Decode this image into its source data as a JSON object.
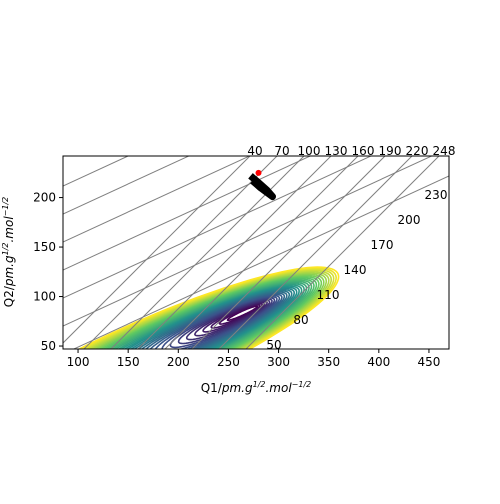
{
  "chart_data": {
    "type": "contour",
    "title": "",
    "xlabel": {
      "base": "Q1/",
      "unit": "pm.g",
      "exp1": "1/2",
      "sep": ".mol",
      "exp2": "−1/2"
    },
    "ylabel": {
      "base": "Q2/",
      "unit": "pm.g",
      "exp1": "1/2",
      "sep": ".mol",
      "exp2": "−1/2"
    },
    "xlim": [
      85,
      470
    ],
    "ylim": [
      47,
      242
    ],
    "x_ticks": [
      100,
      150,
      200,
      250,
      300,
      350,
      400,
      450
    ],
    "y_ticks": [
      50,
      100,
      150,
      200
    ],
    "grid_left_labels": [
      "40",
      "70",
      "100",
      "130",
      "160",
      "190",
      "220",
      "248"
    ],
    "grid_right_labels": [
      "50",
      "80",
      "110",
      "140",
      "170",
      "200",
      "230"
    ],
    "grid_color": "#808080",
    "colormap": [
      "#440154",
      "#3b528b",
      "#21918c",
      "#5ec962",
      "#fde725"
    ],
    "trajectory": {
      "color": "#000000",
      "points": [
        [
          272,
          222
        ],
        [
          280,
          215
        ],
        [
          288,
          208
        ],
        [
          294,
          201
        ],
        [
          282,
          210
        ],
        [
          274,
          217
        ]
      ]
    },
    "markers": [
      {
        "x": 280,
        "y": 225,
        "color": "#ff0000"
      }
    ]
  }
}
